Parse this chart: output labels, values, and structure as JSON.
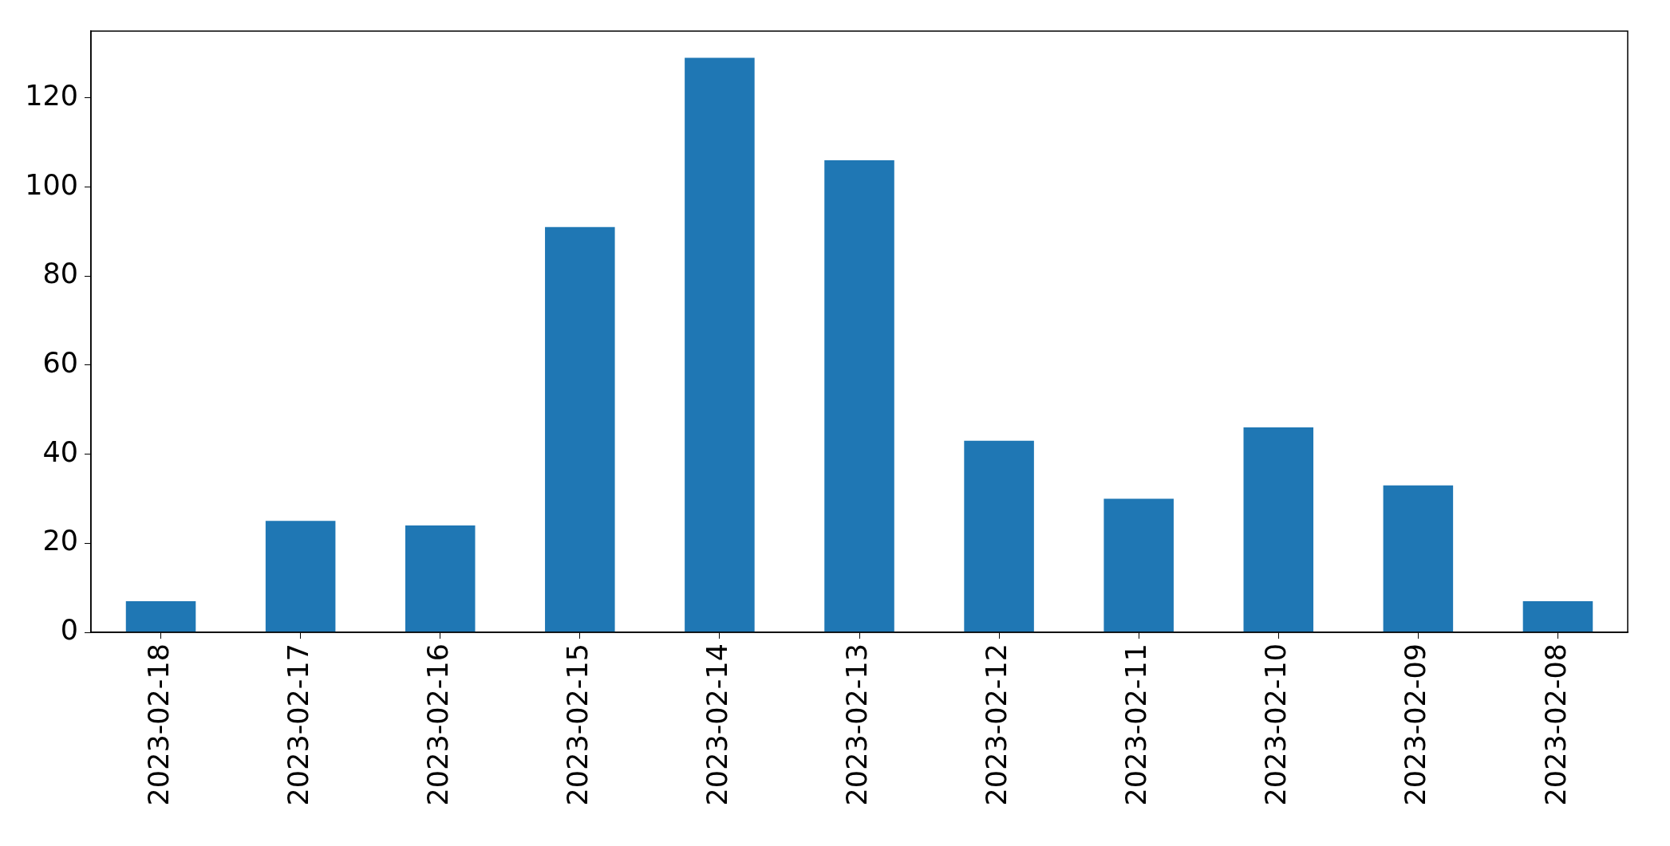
{
  "chart_data": {
    "type": "bar",
    "categories": [
      "2023-02-18",
      "2023-02-17",
      "2023-02-16",
      "2023-02-15",
      "2023-02-14",
      "2023-02-13",
      "2023-02-12",
      "2023-02-11",
      "2023-02-10",
      "2023-02-09",
      "2023-02-08"
    ],
    "values": [
      7,
      25,
      24,
      91,
      129,
      106,
      43,
      30,
      46,
      33,
      7
    ],
    "color": "#1f77b4",
    "ylim": [
      0,
      135
    ],
    "yticks": [
      0,
      20,
      40,
      60,
      80,
      100,
      120
    ],
    "grid": false
  }
}
